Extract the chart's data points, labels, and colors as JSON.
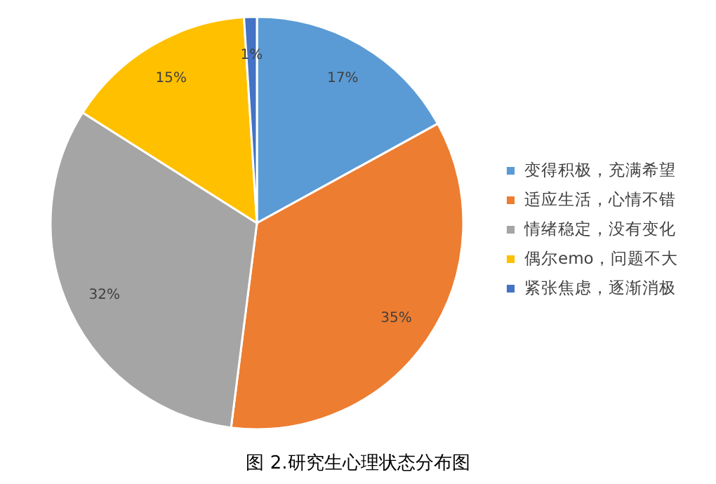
{
  "chart_data": {
    "type": "pie",
    "title": "图 2.研究生心理状态分布图",
    "categories": [
      "变得积极，充满希望",
      "适应生活，心情不错",
      "情绪稳定，没有变化",
      "偶尔emo，问题不大",
      "紧张焦虑，逐渐消极"
    ],
    "values": [
      17,
      35,
      32,
      15,
      1
    ],
    "colors": [
      "#5b9bd5",
      "#ed7d31",
      "#a5a5a5",
      "#ffc000",
      "#4472c4"
    ],
    "value_labels": [
      "17%",
      "35%",
      "32%",
      "15%",
      "1%"
    ],
    "legend": "right"
  }
}
